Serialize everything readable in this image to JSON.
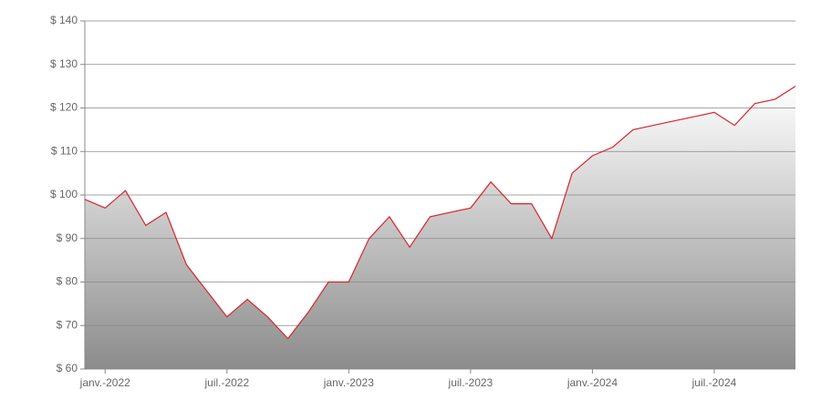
{
  "chart_data": {
    "type": "area",
    "x": [
      "2021-12",
      "2022-01",
      "2022-02",
      "2022-03",
      "2022-04",
      "2022-05",
      "2022-06",
      "2022-07",
      "2022-08",
      "2022-09",
      "2022-10",
      "2022-11",
      "2022-12",
      "2023-01",
      "2023-02",
      "2023-03",
      "2023-04",
      "2023-05",
      "2023-06",
      "2023-07",
      "2023-08",
      "2023-09",
      "2023-10",
      "2023-11",
      "2023-12",
      "2024-01",
      "2024-02",
      "2024-03",
      "2024-04",
      "2024-05",
      "2024-06",
      "2024-07",
      "2024-08",
      "2024-09",
      "2024-10",
      "2024-11"
    ],
    "series": [
      {
        "color": "#d9232d",
        "values": [
          99,
          97,
          101,
          93,
          96,
          84,
          78,
          72,
          76,
          72,
          67,
          73,
          80,
          80,
          90,
          95,
          88,
          95,
          96,
          97,
          103,
          98,
          98,
          90,
          105,
          109,
          111,
          115,
          116,
          117,
          118,
          119,
          116,
          121,
          122,
          125
        ]
      }
    ],
    "xlim": [
      "2021-12",
      "2024-11"
    ],
    "xticks": [
      {
        "value": "2022-01",
        "label": "janv.-2022"
      },
      {
        "value": "2022-07",
        "label": "juil.-2022"
      },
      {
        "value": "2023-01",
        "label": "janv.-2023"
      },
      {
        "value": "2023-07",
        "label": "juil.-2023"
      },
      {
        "value": "2024-01",
        "label": "janv.-2024"
      },
      {
        "value": "2024-07",
        "label": "juil.-2024"
      }
    ],
    "ylim": [
      60,
      140
    ],
    "yticks": [
      {
        "value": 60,
        "label": "$ 60"
      },
      {
        "value": 70,
        "label": "$ 70"
      },
      {
        "value": 80,
        "label": "$ 80"
      },
      {
        "value": 90,
        "label": "$ 90"
      },
      {
        "value": 100,
        "label": "$ 100"
      },
      {
        "value": 110,
        "label": "$ 110"
      },
      {
        "value": 120,
        "label": "$ 120"
      },
      {
        "value": 130,
        "label": "$ 130"
      },
      {
        "value": 140,
        "label": "$ 140"
      }
    ],
    "grid": true
  }
}
